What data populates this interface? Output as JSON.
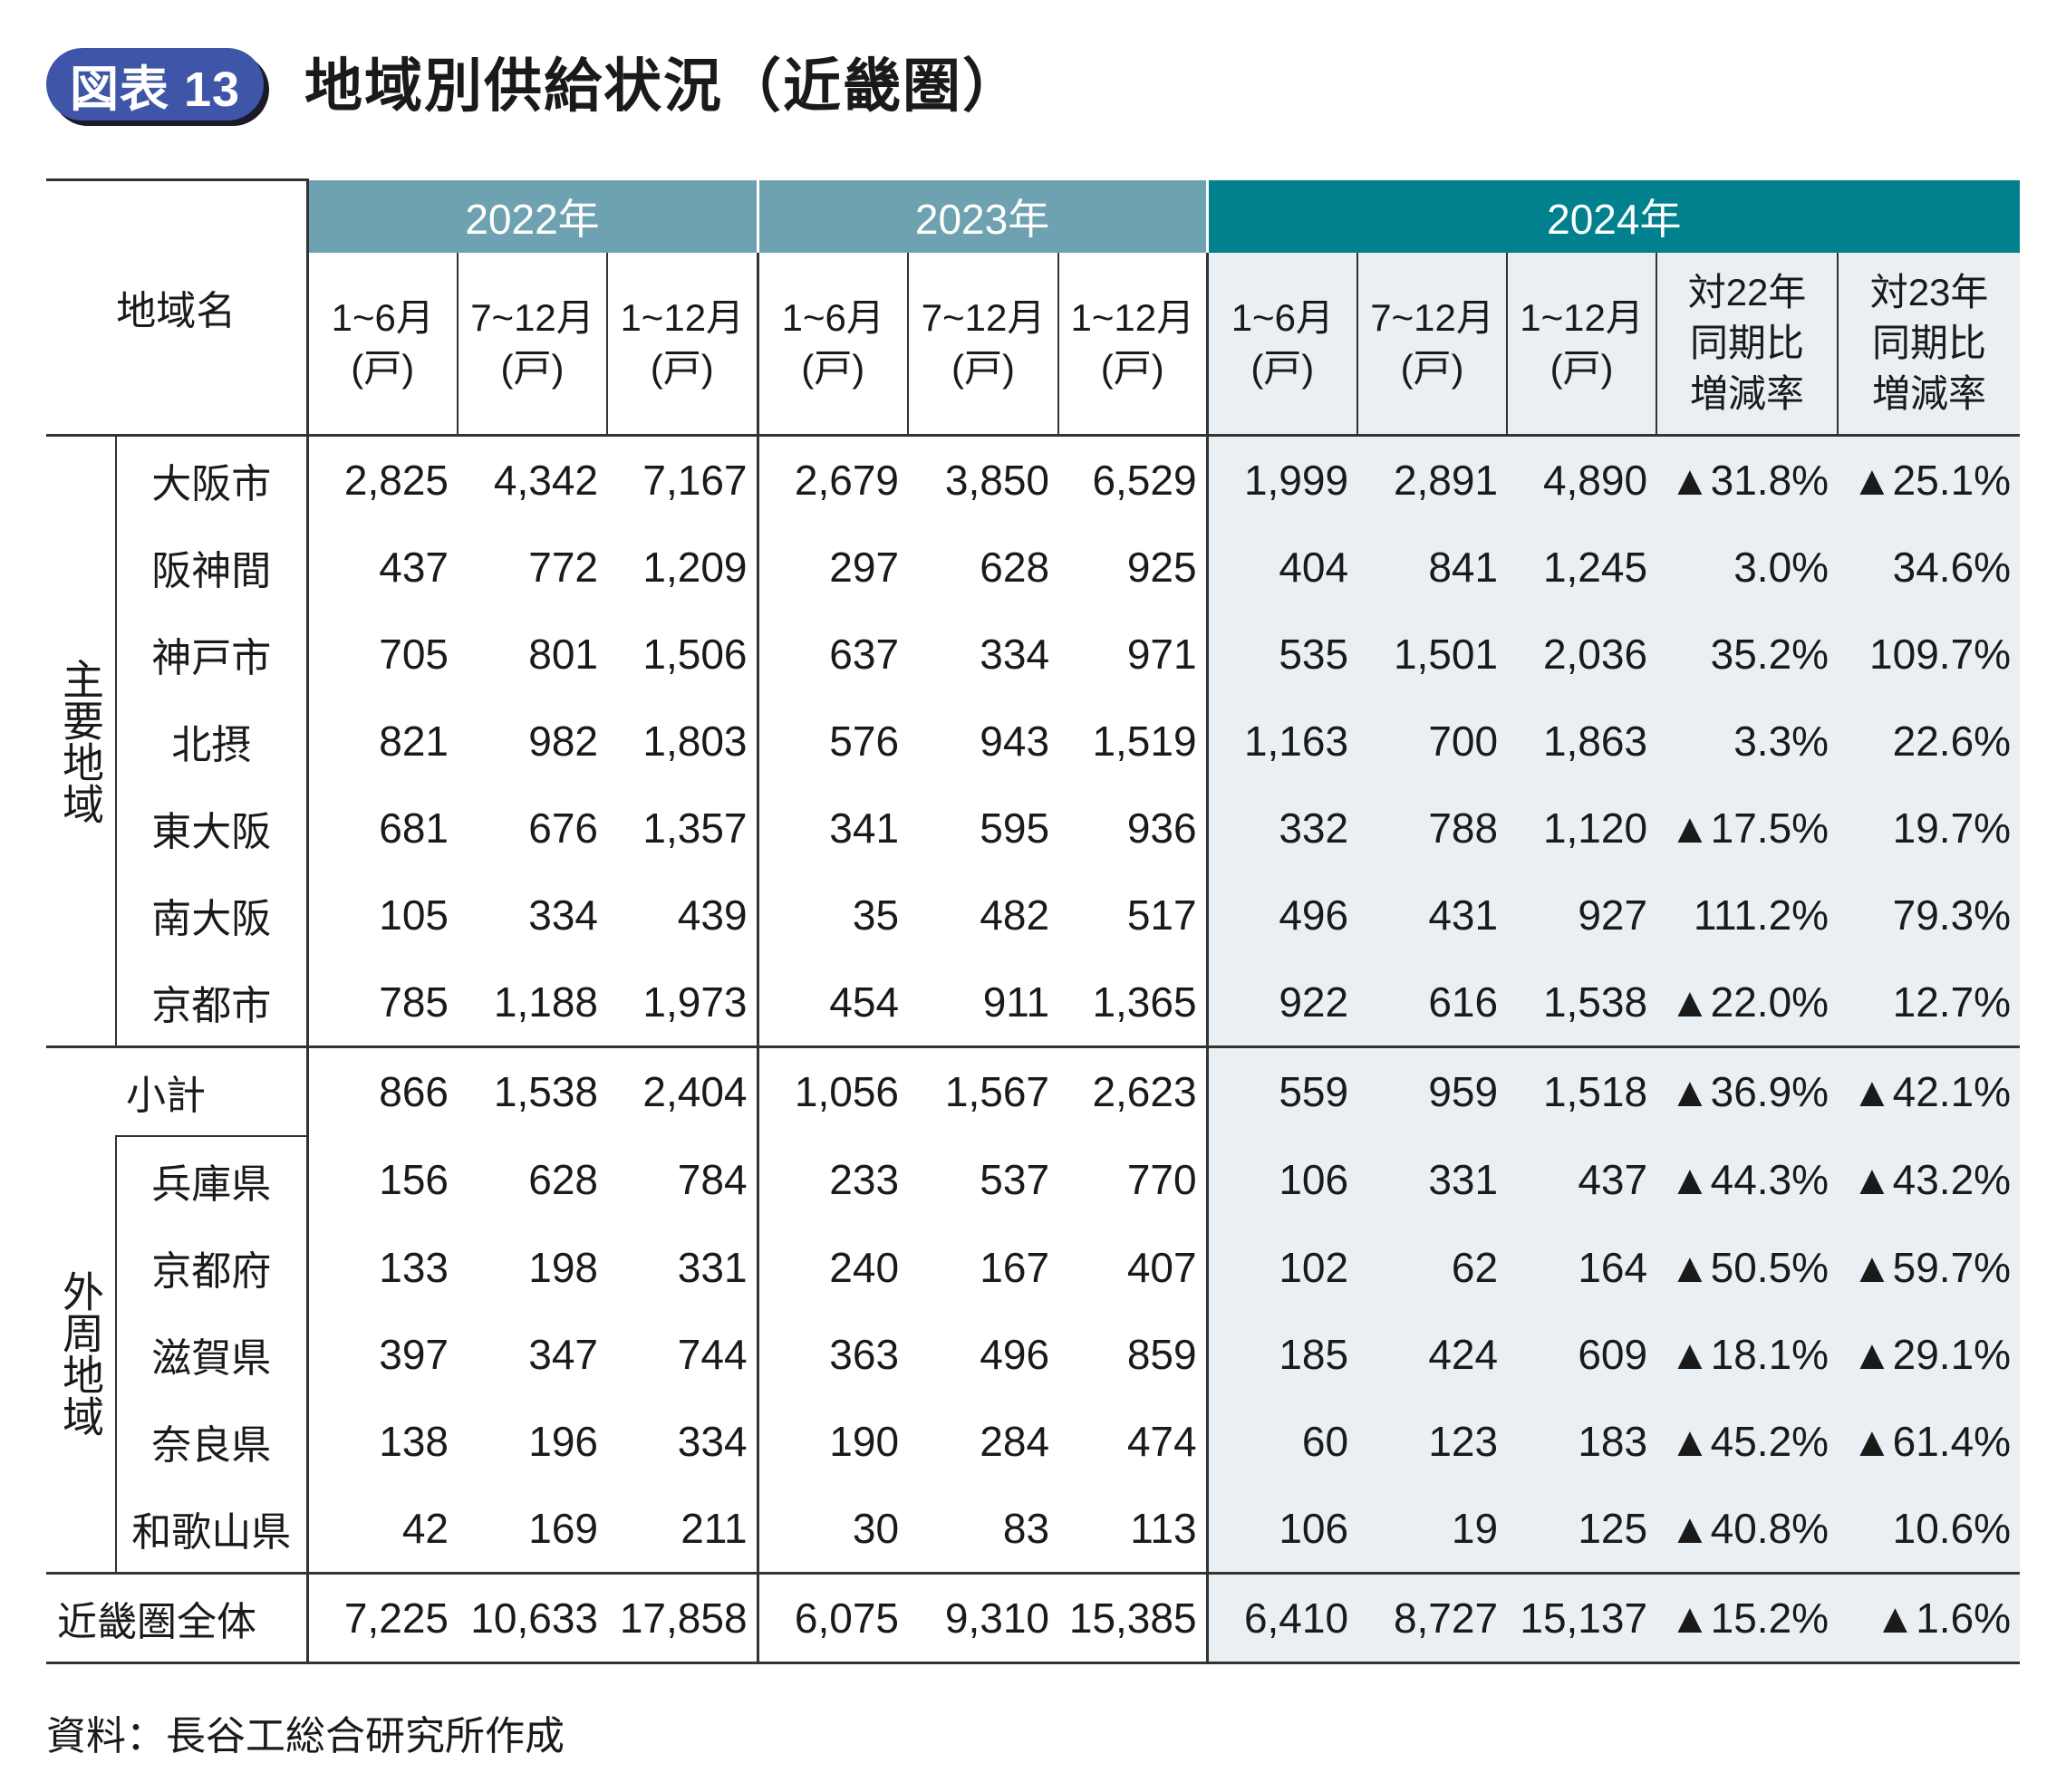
{
  "badge": "図表 13",
  "title": "地域別供給状況（近畿圏）",
  "header": {
    "region_label": "地域名",
    "years": [
      "2022年",
      "2023年",
      "2024年"
    ],
    "period_cols": [
      "1~6月\n(戸)",
      "7~12月\n(戸)",
      "1~12月\n(戸)"
    ],
    "ratio_cols": [
      "対22年\n同期比\n増減率",
      "対23年\n同期比\n増減率"
    ]
  },
  "groups": {
    "main": "主要地域",
    "outer": "外周地域"
  },
  "rows": [
    {
      "name": "大阪市",
      "values": [
        "2,825",
        "4,342",
        "7,167",
        "2,679",
        "3,850",
        "6,529",
        "1,999",
        "2,891",
        "4,890",
        "▲31.8%",
        "▲25.1%"
      ]
    },
    {
      "name": "阪神間",
      "values": [
        "437",
        "772",
        "1,209",
        "297",
        "628",
        "925",
        "404",
        "841",
        "1,245",
        "3.0%",
        "34.6%"
      ]
    },
    {
      "name": "神戸市",
      "values": [
        "705",
        "801",
        "1,506",
        "637",
        "334",
        "971",
        "535",
        "1,501",
        "2,036",
        "35.2%",
        "109.7%"
      ]
    },
    {
      "name": "北摂",
      "values": [
        "821",
        "982",
        "1,803",
        "576",
        "943",
        "1,519",
        "1,163",
        "700",
        "1,863",
        "3.3%",
        "22.6%"
      ]
    },
    {
      "name": "東大阪",
      "values": [
        "681",
        "676",
        "1,357",
        "341",
        "595",
        "936",
        "332",
        "788",
        "1,120",
        "▲17.5%",
        "19.7%"
      ]
    },
    {
      "name": "南大阪",
      "values": [
        "105",
        "334",
        "439",
        "35",
        "482",
        "517",
        "496",
        "431",
        "927",
        "111.2%",
        "79.3%"
      ]
    },
    {
      "name": "京都市",
      "values": [
        "785",
        "1,188",
        "1,973",
        "454",
        "911",
        "1,365",
        "922",
        "616",
        "1,538",
        "▲22.0%",
        "12.7%"
      ]
    },
    {
      "name": "小計",
      "values": [
        "866",
        "1,538",
        "2,404",
        "1,056",
        "1,567",
        "2,623",
        "559",
        "959",
        "1,518",
        "▲36.9%",
        "▲42.1%"
      ]
    },
    {
      "name": "兵庫県",
      "values": [
        "156",
        "628",
        "784",
        "233",
        "537",
        "770",
        "106",
        "331",
        "437",
        "▲44.3%",
        "▲43.2%"
      ]
    },
    {
      "name": "京都府",
      "values": [
        "133",
        "198",
        "331",
        "240",
        "167",
        "407",
        "102",
        "62",
        "164",
        "▲50.5%",
        "▲59.7%"
      ]
    },
    {
      "name": "滋賀県",
      "values": [
        "397",
        "347",
        "744",
        "363",
        "496",
        "859",
        "185",
        "424",
        "609",
        "▲18.1%",
        "▲29.1%"
      ]
    },
    {
      "name": "奈良県",
      "values": [
        "138",
        "196",
        "334",
        "190",
        "284",
        "474",
        "60",
        "123",
        "183",
        "▲45.2%",
        "▲61.4%"
      ]
    },
    {
      "name": "和歌山県",
      "values": [
        "42",
        "169",
        "211",
        "30",
        "83",
        "113",
        "106",
        "19",
        "125",
        "▲40.8%",
        "10.6%"
      ]
    },
    {
      "name": "近畿圏全体",
      "values": [
        "7,225",
        "10,633",
        "17,858",
        "6,075",
        "9,310",
        "15,385",
        "6,410",
        "8,727",
        "15,137",
        "▲15.2%",
        "▲1.6%"
      ]
    }
  ],
  "source": "資料：長谷工総合研究所作成",
  "colors": {
    "badge": "#3f56a8",
    "year_2022_2023": "#6fa2b0",
    "year_2024": "#00818d",
    "highlight": "#e9eff3"
  }
}
